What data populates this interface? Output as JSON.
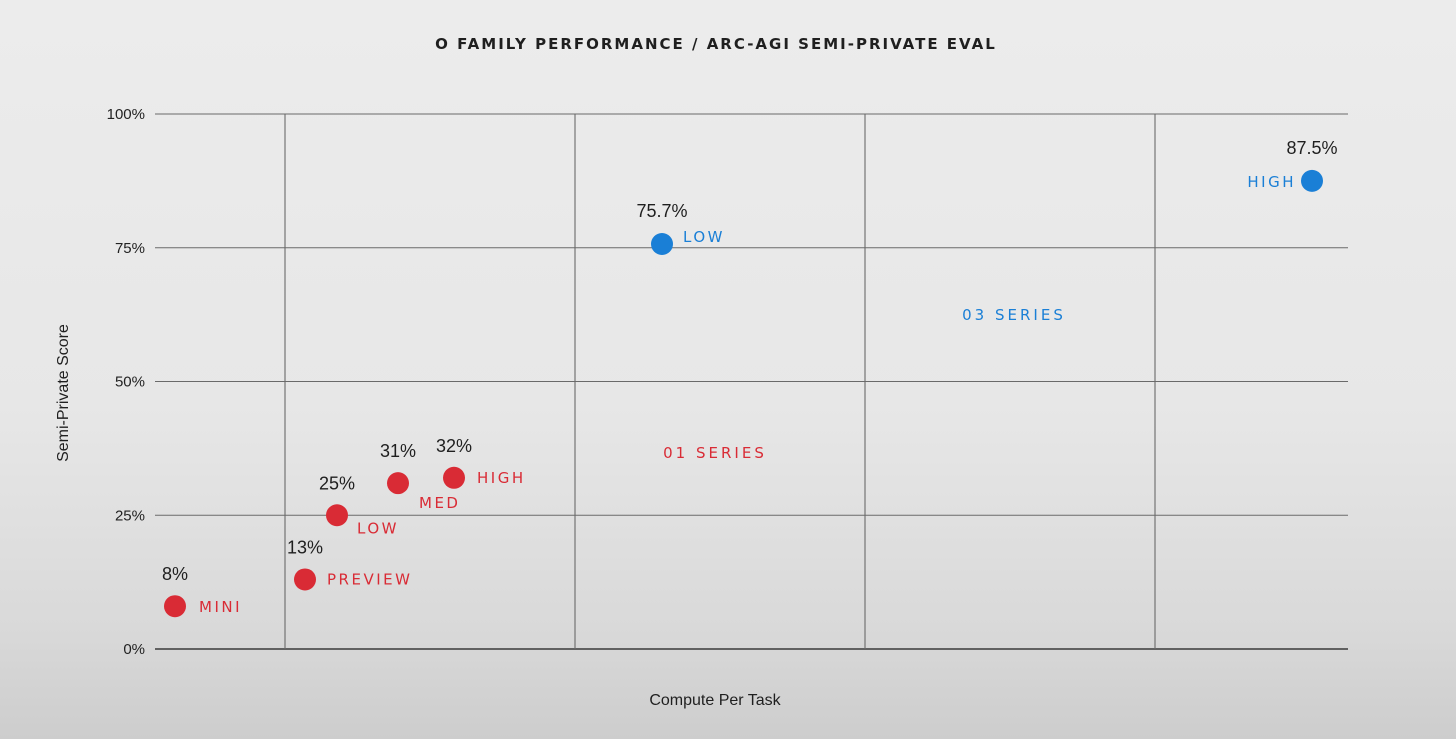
{
  "chart_data": {
    "type": "scatter",
    "title": "O FAMILY PERFORMANCE / ARC-AGI SEMI-PRIVATE EVAL",
    "xlabel": "Compute Per Task",
    "ylabel": "Semi-Private Score",
    "ylim": [
      0,
      100
    ],
    "y_ticks": [
      "0%",
      "25%",
      "50%",
      "75%",
      "100%"
    ],
    "y_tick_values": [
      0,
      25,
      50,
      75,
      100
    ],
    "grid": true,
    "colors": {
      "o1": "#d92b35",
      "o3": "#1a7fd6"
    },
    "series": [
      {
        "name": "01 SERIES",
        "color_key": "o1",
        "points": [
          {
            "label": "MINI",
            "value": 8,
            "value_label": "8%"
          },
          {
            "label": "PREVIEW",
            "value": 13,
            "value_label": "13%"
          },
          {
            "label": "LOW",
            "value": 25,
            "value_label": "25%"
          },
          {
            "label": "MED",
            "value": 31,
            "value_label": "31%"
          },
          {
            "label": "HIGH",
            "value": 32,
            "value_label": "32%"
          }
        ]
      },
      {
        "name": "03 SERIES",
        "color_key": "o3",
        "points": [
          {
            "label": "LOW",
            "value": 75.7,
            "value_label": "75.7%"
          },
          {
            "label": "HIGH",
            "value": 87.5,
            "value_label": "87.5%"
          }
        ]
      }
    ]
  }
}
